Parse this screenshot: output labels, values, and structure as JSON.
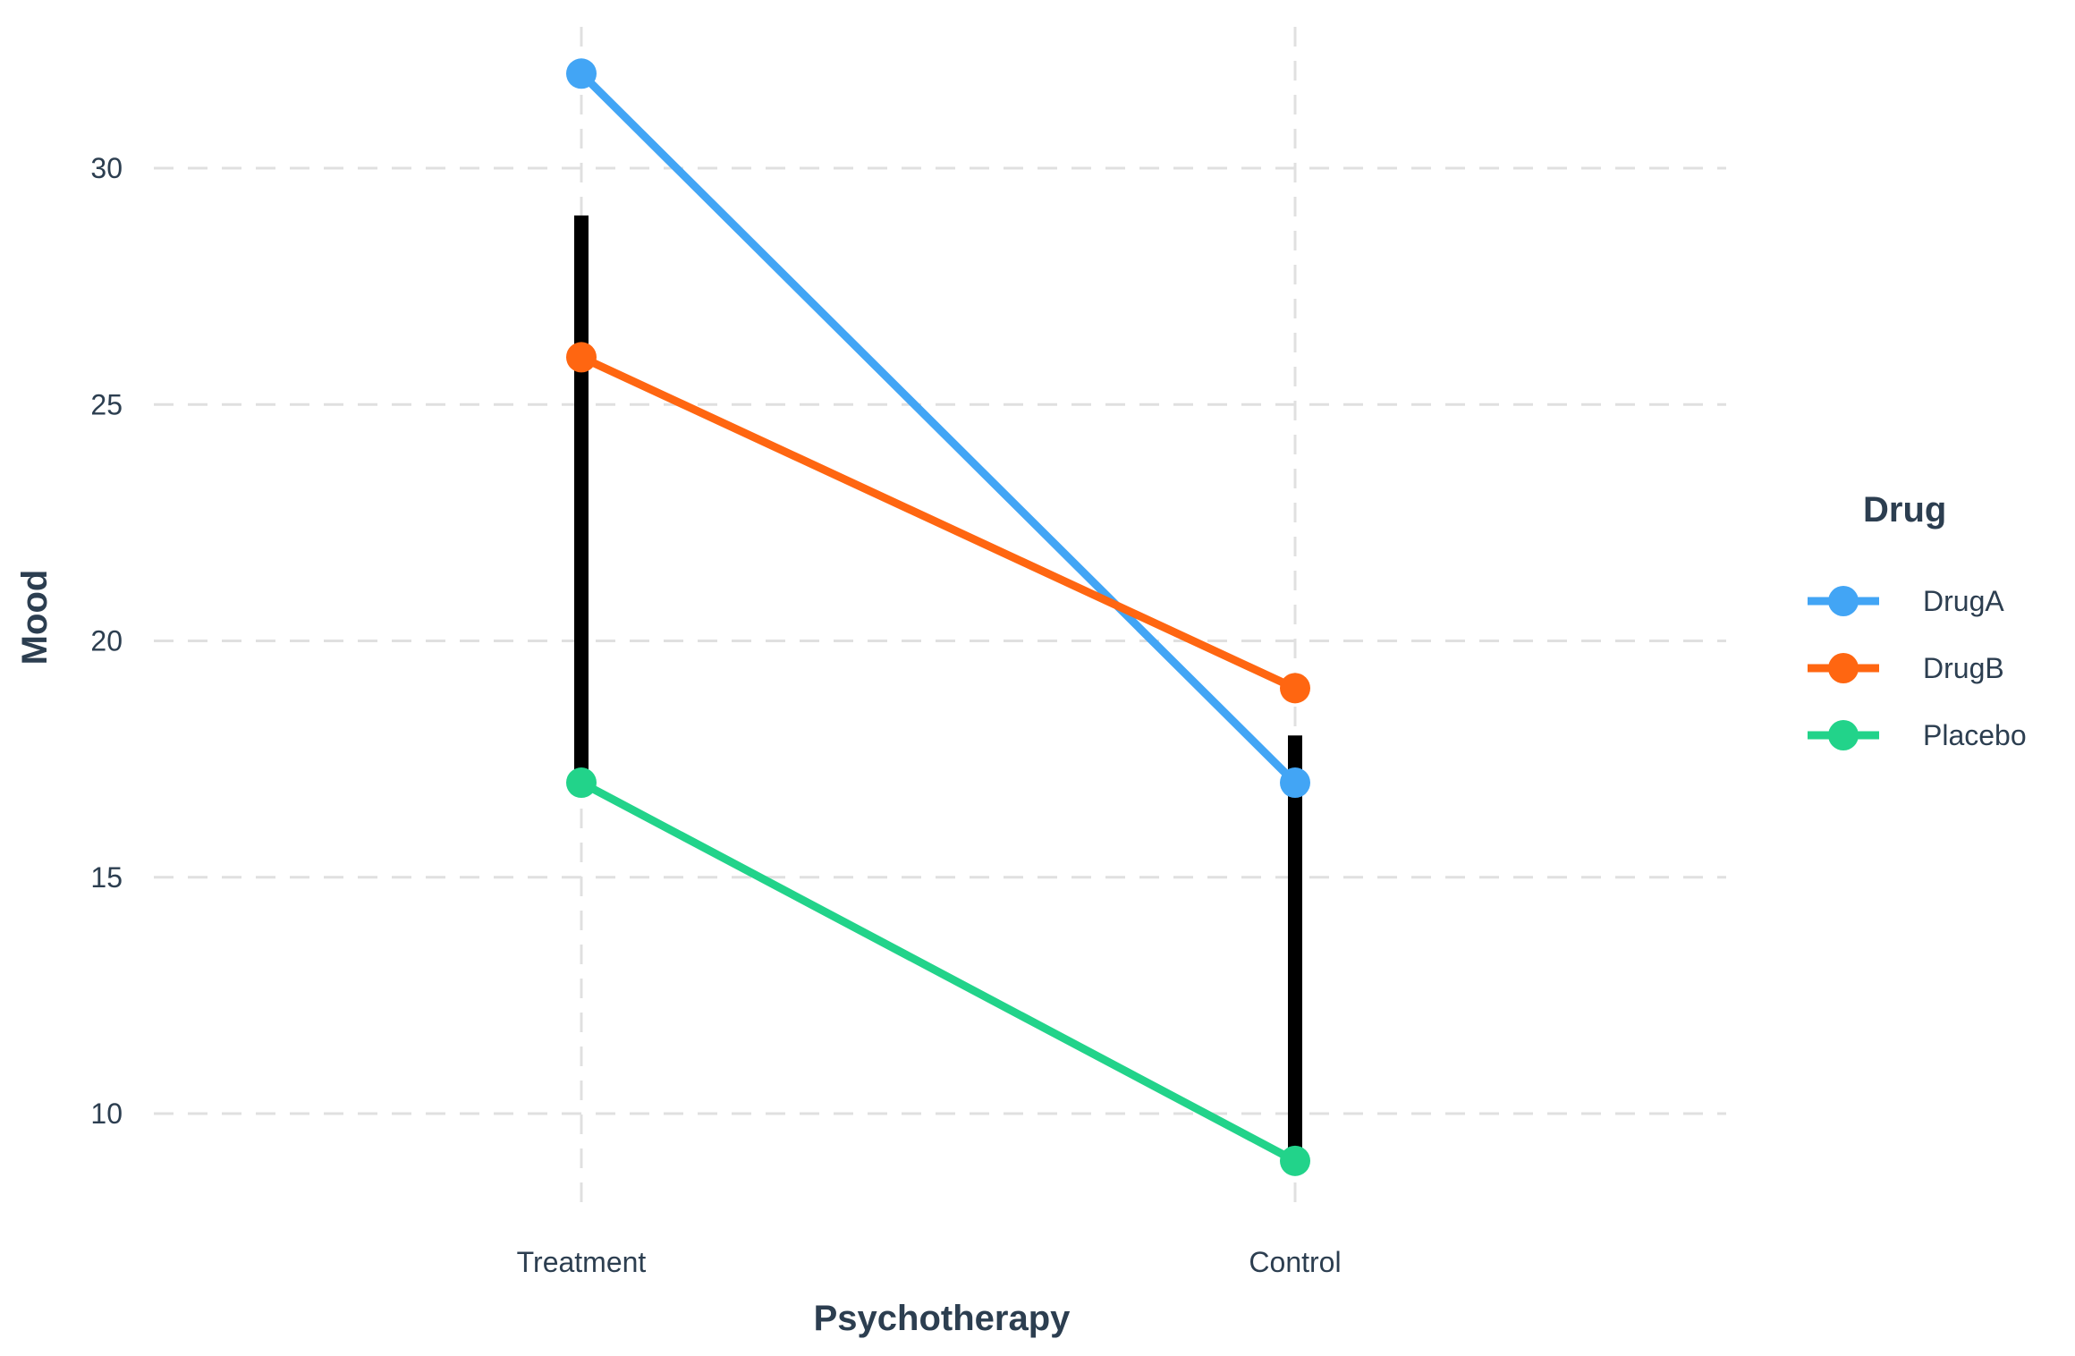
{
  "chart_data": {
    "type": "line",
    "xlabel": "Psychotherapy",
    "ylabel": "Mood",
    "categories": [
      "Treatment",
      "Control"
    ],
    "ylim": [
      8,
      32.5
    ],
    "yticks": [
      10,
      15,
      20,
      25,
      30
    ],
    "grid": true,
    "legend": {
      "title": "Drug",
      "placement": "right"
    },
    "series": [
      {
        "name": "DrugA",
        "color": "#42a5f5",
        "values": [
          32,
          17
        ]
      },
      {
        "name": "DrugB",
        "color": "#ff6611",
        "values": [
          26,
          19
        ]
      },
      {
        "name": "Placebo",
        "color": "#22d38a",
        "values": [
          17,
          9
        ]
      }
    ],
    "ranges": [
      {
        "category": "Treatment",
        "low": 17,
        "high": 29,
        "color": "#000000"
      },
      {
        "category": "Control",
        "low": 9,
        "high": 18,
        "color": "#000000"
      }
    ]
  }
}
